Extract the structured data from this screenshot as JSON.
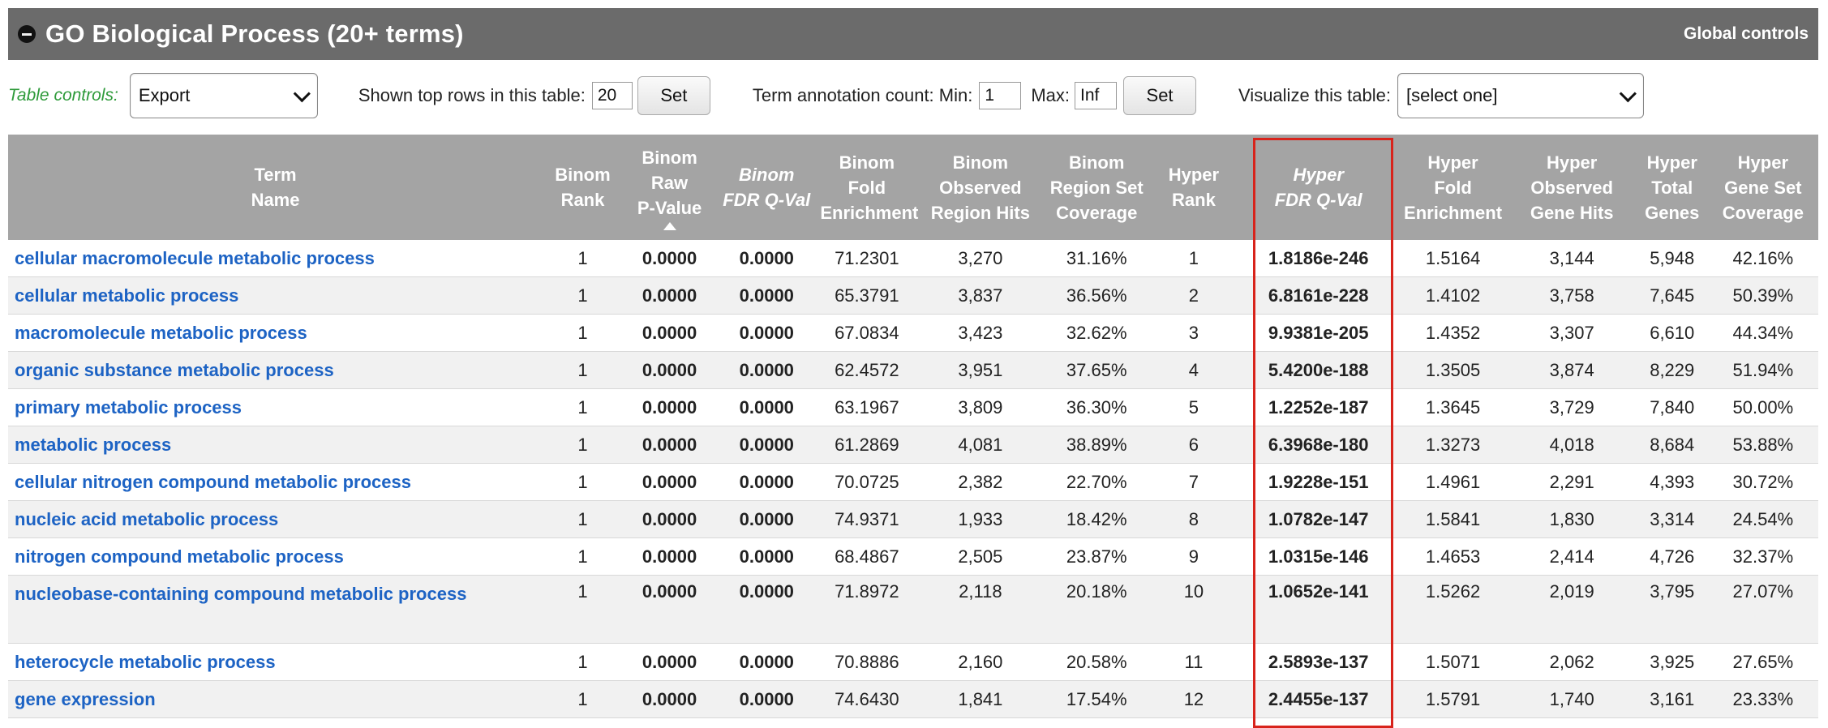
{
  "header": {
    "title": "GO Biological Process (20+ terms)",
    "global_controls": "Global controls"
  },
  "controls": {
    "table_controls_label": "Table controls:",
    "export_select": "Export",
    "shown_top_rows_label": "Shown top rows in this table:",
    "shown_top_rows_value": "20",
    "set_label": "Set",
    "term_count_label": "Term annotation count: Min:",
    "min_value": "1",
    "max_label": "Max:",
    "max_value": "Inf",
    "visualize_label": "Visualize this table:",
    "visualize_select": "[select one]"
  },
  "table": {
    "headers": [
      {
        "l1": "Term",
        "l2": "Name",
        "l3": "",
        "l4": ""
      },
      {
        "l1": "Binom",
        "l2": "Rank",
        "l3": "",
        "l4": ""
      },
      {
        "l1": "Binom",
        "l2": "Raw",
        "l3": "P-Value",
        "l4": ""
      },
      {
        "l1": "Binom",
        "l2": "FDR Q-Val",
        "l3": "",
        "l4": ""
      },
      {
        "l1": "Binom",
        "l2": "Fold",
        "l3": "Enrichment",
        "l4": ""
      },
      {
        "l1": "Binom",
        "l2": "Observed",
        "l3": "Region Hits",
        "l4": ""
      },
      {
        "l1": "Binom",
        "l2": "Region Set",
        "l3": "Coverage",
        "l4": ""
      },
      {
        "l1": "Hyper",
        "l2": "Rank",
        "l3": "",
        "l4": ""
      },
      {
        "l1": "Hyper",
        "l2": "FDR Q-Val",
        "l3": "",
        "l4": ""
      },
      {
        "l1": "Hyper",
        "l2": "Fold",
        "l3": "Enrichment",
        "l4": ""
      },
      {
        "l1": "Hyper",
        "l2": "Observed",
        "l3": "Gene Hits",
        "l4": ""
      },
      {
        "l1": "Hyper",
        "l2": "Total",
        "l3": "Genes",
        "l4": ""
      },
      {
        "l1": "Hyper",
        "l2": "Gene Set",
        "l3": "Coverage",
        "l4": ""
      }
    ],
    "rows": [
      {
        "term": "cellular macromolecule metabolic process",
        "binom_rank": "1",
        "binom_raw_p": "0.0000",
        "binom_fdr": "0.0000",
        "binom_fold": "71.2301",
        "binom_obs": "3,270",
        "binom_cov": "31.16%",
        "hyper_rank": "1",
        "hyper_fdr": "1.8186e-246",
        "hyper_fold": "1.5164",
        "hyper_obs": "3,144",
        "hyper_total": "5,948",
        "hyper_cov": "42.16%"
      },
      {
        "term": "cellular metabolic process",
        "binom_rank": "1",
        "binom_raw_p": "0.0000",
        "binom_fdr": "0.0000",
        "binom_fold": "65.3791",
        "binom_obs": "3,837",
        "binom_cov": "36.56%",
        "hyper_rank": "2",
        "hyper_fdr": "6.8161e-228",
        "hyper_fold": "1.4102",
        "hyper_obs": "3,758",
        "hyper_total": "7,645",
        "hyper_cov": "50.39%"
      },
      {
        "term": "macromolecule metabolic process",
        "binom_rank": "1",
        "binom_raw_p": "0.0000",
        "binom_fdr": "0.0000",
        "binom_fold": "67.0834",
        "binom_obs": "3,423",
        "binom_cov": "32.62%",
        "hyper_rank": "3",
        "hyper_fdr": "9.9381e-205",
        "hyper_fold": "1.4352",
        "hyper_obs": "3,307",
        "hyper_total": "6,610",
        "hyper_cov": "44.34%"
      },
      {
        "term": "organic substance metabolic process",
        "binom_rank": "1",
        "binom_raw_p": "0.0000",
        "binom_fdr": "0.0000",
        "binom_fold": "62.4572",
        "binom_obs": "3,951",
        "binom_cov": "37.65%",
        "hyper_rank": "4",
        "hyper_fdr": "5.4200e-188",
        "hyper_fold": "1.3505",
        "hyper_obs": "3,874",
        "hyper_total": "8,229",
        "hyper_cov": "51.94%"
      },
      {
        "term": "primary metabolic process",
        "binom_rank": "1",
        "binom_raw_p": "0.0000",
        "binom_fdr": "0.0000",
        "binom_fold": "63.1967",
        "binom_obs": "3,809",
        "binom_cov": "36.30%",
        "hyper_rank": "5",
        "hyper_fdr": "1.2252e-187",
        "hyper_fold": "1.3645",
        "hyper_obs": "3,729",
        "hyper_total": "7,840",
        "hyper_cov": "50.00%"
      },
      {
        "term": "metabolic process",
        "binom_rank": "1",
        "binom_raw_p": "0.0000",
        "binom_fdr": "0.0000",
        "binom_fold": "61.2869",
        "binom_obs": "4,081",
        "binom_cov": "38.89%",
        "hyper_rank": "6",
        "hyper_fdr": "6.3968e-180",
        "hyper_fold": "1.3273",
        "hyper_obs": "4,018",
        "hyper_total": "8,684",
        "hyper_cov": "53.88%"
      },
      {
        "term": "cellular nitrogen compound metabolic process",
        "binom_rank": "1",
        "binom_raw_p": "0.0000",
        "binom_fdr": "0.0000",
        "binom_fold": "70.0725",
        "binom_obs": "2,382",
        "binom_cov": "22.70%",
        "hyper_rank": "7",
        "hyper_fdr": "1.9228e-151",
        "hyper_fold": "1.4961",
        "hyper_obs": "2,291",
        "hyper_total": "4,393",
        "hyper_cov": "30.72%"
      },
      {
        "term": "nucleic acid metabolic process",
        "binom_rank": "1",
        "binom_raw_p": "0.0000",
        "binom_fdr": "0.0000",
        "binom_fold": "74.9371",
        "binom_obs": "1,933",
        "binom_cov": "18.42%",
        "hyper_rank": "8",
        "hyper_fdr": "1.0782e-147",
        "hyper_fold": "1.5841",
        "hyper_obs": "1,830",
        "hyper_total": "3,314",
        "hyper_cov": "24.54%"
      },
      {
        "term": "nitrogen compound metabolic process",
        "binom_rank": "1",
        "binom_raw_p": "0.0000",
        "binom_fdr": "0.0000",
        "binom_fold": "68.4867",
        "binom_obs": "2,505",
        "binom_cov": "23.87%",
        "hyper_rank": "9",
        "hyper_fdr": "1.0315e-146",
        "hyper_fold": "1.4653",
        "hyper_obs": "2,414",
        "hyper_total": "4,726",
        "hyper_cov": "32.37%"
      },
      {
        "term": "nucleobase-containing compound metabolic process",
        "binom_rank": "1",
        "binom_raw_p": "0.0000",
        "binom_fdr": "0.0000",
        "binom_fold": "71.8972",
        "binom_obs": "2,118",
        "binom_cov": "20.18%",
        "hyper_rank": "10",
        "hyper_fdr": "1.0652e-141",
        "hyper_fold": "1.5262",
        "hyper_obs": "2,019",
        "hyper_total": "3,795",
        "hyper_cov": "27.07%"
      },
      {
        "term": "heterocycle metabolic process",
        "binom_rank": "1",
        "binom_raw_p": "0.0000",
        "binom_fdr": "0.0000",
        "binom_fold": "70.8886",
        "binom_obs": "2,160",
        "binom_cov": "20.58%",
        "hyper_rank": "11",
        "hyper_fdr": "2.5893e-137",
        "hyper_fold": "1.5071",
        "hyper_obs": "2,062",
        "hyper_total": "3,925",
        "hyper_cov": "27.65%"
      },
      {
        "term": "gene expression",
        "binom_rank": "1",
        "binom_raw_p": "0.0000",
        "binom_fdr": "0.0000",
        "binom_fold": "74.6430",
        "binom_obs": "1,841",
        "binom_cov": "17.54%",
        "hyper_rank": "12",
        "hyper_fdr": "2.4455e-137",
        "hyper_fold": "1.5791",
        "hyper_obs": "1,740",
        "hyper_total": "3,161",
        "hyper_cov": "23.33%"
      }
    ]
  },
  "colors": {
    "header_bg": "#6b6b6b",
    "table_header_bg": "#a4a4a4",
    "link": "#1d63c4",
    "table_controls_label": "#2e9a3a",
    "highlight_box": "#d8231b"
  },
  "icons": {
    "collapse": "collapse-minus-icon",
    "sort": "sort-ascending-icon",
    "select_chevron": "chevron-down-icon"
  }
}
